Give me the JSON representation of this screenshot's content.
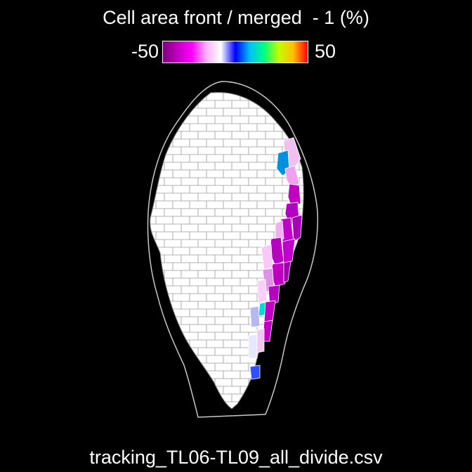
{
  "title": "Cell area front / merged  - 1 (%)",
  "colorbar": {
    "min_label": "-50",
    "max_label": "50",
    "colors": [
      "#7a007a",
      "#c000c0",
      "#ff00ff",
      "#ffb0ff",
      "#ffffff",
      "#0000ff",
      "#00c0ff",
      "#00ff80",
      "#c0ff00",
      "#ffc000",
      "#ff0000"
    ]
  },
  "filename": "tracking_TL06-TL09_all_divide.csv",
  "colors": {
    "background": "#000000",
    "outline": "#c8c8c8",
    "cell_fill": "#ffffff",
    "cell_edge": "#8c8c8c"
  }
}
